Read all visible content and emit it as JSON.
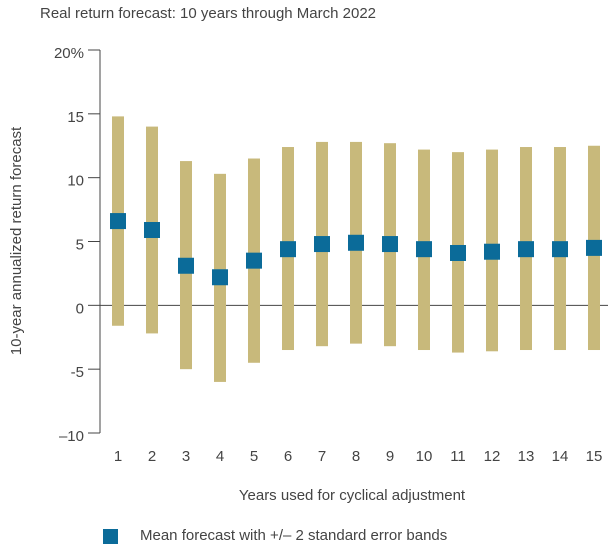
{
  "chart_data": {
    "type": "range",
    "title": "Real return forecast: 10 years through March 2022",
    "y_label": "10-year annualized return forecast",
    "x_label": "Years used for cyclical adjustment",
    "categories": [
      "1",
      "2",
      "3",
      "4",
      "5",
      "6",
      "7",
      "8",
      "9",
      "10",
      "11",
      "12",
      "13",
      "14",
      "15"
    ],
    "series": [
      {
        "name": "Mean forecast with +/– 2 standard error bands",
        "color": "#0b6b99",
        "band_color": "#c8b97b",
        "values": [
          6.6,
          5.9,
          3.1,
          2.2,
          3.5,
          4.4,
          4.8,
          4.9,
          4.8,
          4.4,
          4.1,
          4.2,
          4.4,
          4.4,
          4.5
        ],
        "low": [
          -1.6,
          -2.2,
          -5.0,
          -6.0,
          -4.5,
          -3.5,
          -3.2,
          -3.0,
          -3.2,
          -3.5,
          -3.7,
          -3.6,
          -3.5,
          -3.5,
          -3.5
        ],
        "high": [
          14.8,
          14.0,
          11.3,
          10.3,
          11.5,
          12.4,
          12.8,
          12.8,
          12.7,
          12.2,
          12.0,
          12.2,
          12.4,
          12.4,
          12.5
        ]
      }
    ],
    "ylim": [
      -10,
      20
    ],
    "yticks": [
      {
        "value": 20,
        "label": "20%"
      },
      15,
      10,
      5,
      0,
      -5,
      {
        "value": -10,
        "label": "–10"
      }
    ]
  }
}
